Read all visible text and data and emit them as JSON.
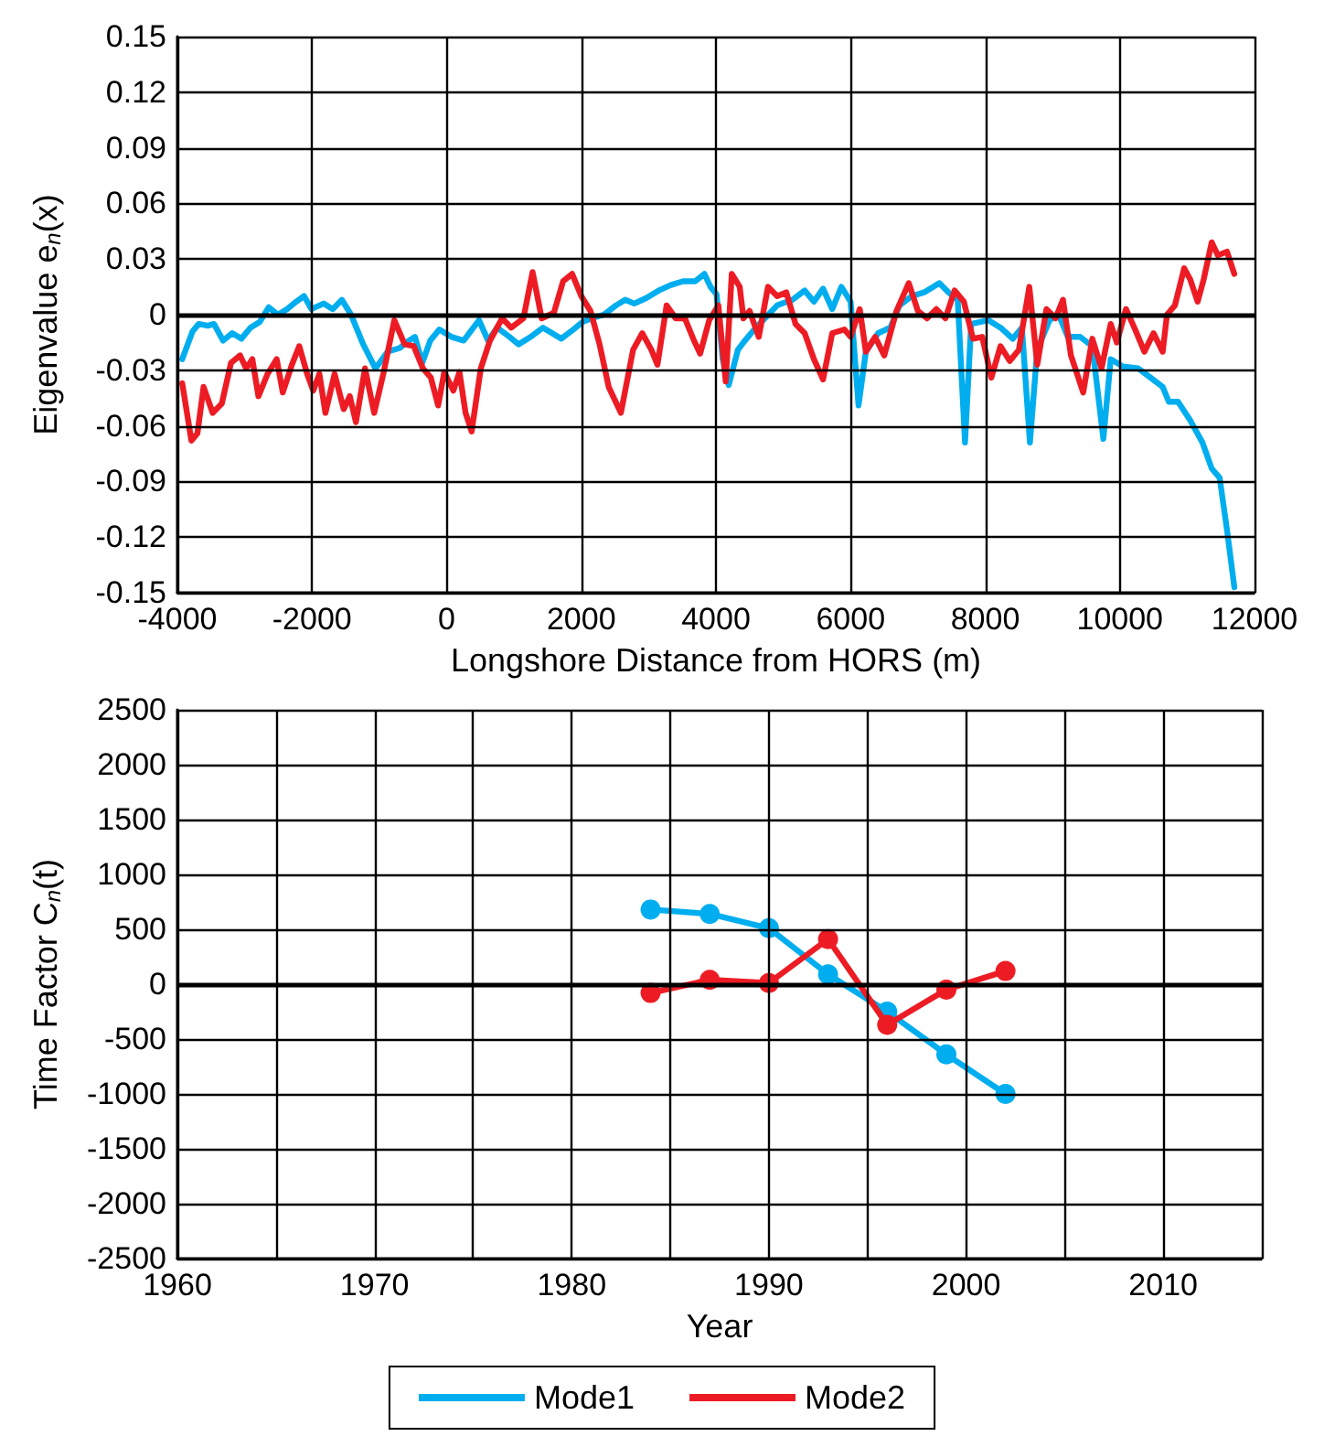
{
  "chart_data": [
    {
      "type": "line",
      "xlabel": "Longshore Distance from HORS (m)",
      "ylabel": "Eigenvalue e$_{n}$(x)",
      "xlim": [
        -4000,
        12000
      ],
      "ylim": [
        -0.15,
        0.15
      ],
      "xticks": [
        -4000,
        -2000,
        0,
        2000,
        4000,
        6000,
        8000,
        10000,
        12000
      ],
      "yticks": [
        -0.15,
        -0.12,
        -0.09,
        -0.06,
        -0.03,
        0,
        0.03,
        0.06,
        0.09,
        0.12,
        0.15
      ],
      "grid": true,
      "legend": false,
      "marker": "none",
      "line_style": "solid",
      "ref_lines": [
        {
          "axis": "y",
          "value": 0,
          "color": "#000000"
        }
      ],
      "series": [
        {
          "color": "#00aeef",
          "x": [
            -3928,
            -3774,
            -3683,
            -3548,
            -3457,
            -3321,
            -3186,
            -3050,
            -2914,
            -2778,
            -2643,
            -2507,
            -2371,
            -2235,
            -2118,
            -2009,
            -1828,
            -1692,
            -1557,
            -1421,
            -1240,
            -1059,
            -878,
            -697,
            -561,
            -471,
            -362,
            -244,
            -109,
            72,
            253,
            480,
            615,
            751,
            932,
            1068,
            1249,
            1430,
            1701,
            1882,
            2018,
            2154,
            2335,
            2516,
            2652,
            2787,
            2968,
            3149,
            3330,
            3511,
            3692,
            3828,
            3919,
            4009,
            4100,
            4190,
            4326,
            4409,
            4591,
            4727,
            4909,
            5136,
            5318,
            5455,
            5591,
            5727,
            5864,
            6000,
            6118,
            6227,
            6409,
            6591,
            6727,
            6909,
            7091,
            7318,
            7455,
            7591,
            7700,
            7791,
            8045,
            8227,
            8409,
            8545,
            8664,
            8773,
            8955,
            9091,
            9227,
            9409,
            9591,
            9755,
            9864,
            10045,
            10273,
            10455,
            10636,
            10727,
            10864,
            11045,
            11227,
            11364,
            11482,
            11591,
            11700
          ],
          "values": [
            -0.024,
            -0.009,
            -0.005,
            -0.006,
            -0.005,
            -0.014,
            -0.01,
            -0.013,
            -0.007,
            -0.004,
            0.004,
            0,
            0.003,
            0.007,
            0.01,
            0.003,
            0.006,
            0.003,
            0.008,
            0,
            -0.016,
            -0.029,
            -0.02,
            -0.018,
            -0.014,
            -0.012,
            -0.026,
            -0.014,
            -0.008,
            -0.012,
            -0.014,
            -0.003,
            -0.014,
            -0.007,
            -0.012,
            -0.016,
            -0.012,
            -0.007,
            -0.013,
            -0.008,
            -0.004,
            -0.002,
            0,
            0.005,
            0.008,
            0.006,
            0.009,
            0.013,
            0.016,
            0.018,
            0.018,
            0.022,
            0.015,
            0.011,
            -0.024,
            -0.038,
            -0.019,
            -0.015,
            -0.007,
            -0.002,
            0.005,
            0.008,
            0.013,
            0.007,
            0.014,
            0.003,
            0.015,
            0.007,
            -0.049,
            -0.02,
            -0.01,
            -0.007,
            0.005,
            0.01,
            0.012,
            0.017,
            0.012,
            0.008,
            -0.069,
            -0.005,
            -0.003,
            -0.007,
            -0.013,
            -0.007,
            -0.069,
            -0.019,
            -0.003,
            0,
            -0.012,
            -0.012,
            -0.017,
            -0.067,
            -0.024,
            -0.028,
            -0.029,
            -0.034,
            -0.039,
            -0.047,
            -0.047,
            -0.057,
            -0.069,
            -0.083,
            -0.088,
            -0.116,
            -0.147
          ]
        },
        {
          "color": "#ed1c24",
          "x": [
            -3928,
            -3792,
            -3702,
            -3611,
            -3476,
            -3340,
            -3204,
            -3069,
            -2978,
            -2887,
            -2796,
            -2661,
            -2525,
            -2434,
            -2299,
            -2190,
            -2072,
            -1982,
            -1891,
            -1801,
            -1665,
            -1529,
            -1439,
            -1348,
            -1213,
            -1077,
            -941,
            -778,
            -624,
            -489,
            -353,
            -235,
            -127,
            -36,
            100,
            190,
            281,
            371,
            507,
            643,
            824,
            959,
            1140,
            1276,
            1412,
            1593,
            1729,
            1864,
            2000,
            2136,
            2271,
            2407,
            2588,
            2769,
            2905,
            3041,
            3131,
            3267,
            3403,
            3538,
            3674,
            3765,
            3900,
            4036,
            4145,
            4235,
            4353,
            4409,
            4500,
            4636,
            4773,
            4909,
            5045,
            5182,
            5318,
            5455,
            5591,
            5727,
            5909,
            6000,
            6136,
            6227,
            6364,
            6500,
            6682,
            6864,
            7000,
            7136,
            7273,
            7409,
            7545,
            7682,
            7818,
            7955,
            8091,
            8227,
            8364,
            8500,
            8655,
            8773,
            8909,
            9045,
            9155,
            9273,
            9455,
            9591,
            9727,
            9864,
            9955,
            10091,
            10227,
            10364,
            10500,
            10636,
            10700,
            10818,
            10955,
            11045,
            11155,
            11245,
            11364,
            11455,
            11591,
            11700
          ],
          "values": [
            -0.037,
            -0.068,
            -0.064,
            -0.039,
            -0.053,
            -0.048,
            -0.026,
            -0.022,
            -0.029,
            -0.024,
            -0.044,
            -0.032,
            -0.024,
            -0.042,
            -0.027,
            -0.017,
            -0.032,
            -0.041,
            -0.032,
            -0.053,
            -0.032,
            -0.051,
            -0.044,
            -0.058,
            -0.029,
            -0.053,
            -0.032,
            -0.003,
            -0.016,
            -0.017,
            -0.029,
            -0.034,
            -0.049,
            -0.031,
            -0.041,
            -0.031,
            -0.053,
            -0.063,
            -0.029,
            -0.014,
            -0.002,
            -0.007,
            -0.002,
            0.023,
            -0.002,
            0.001,
            0.018,
            0.022,
            0.01,
            0.002,
            -0.016,
            -0.039,
            -0.053,
            -0.019,
            -0.01,
            -0.019,
            -0.027,
            0.005,
            -0.002,
            -0.002,
            -0.014,
            -0.021,
            -0.003,
            0.005,
            -0.036,
            0.022,
            0.015,
            -0.002,
            0.002,
            -0.012,
            0.015,
            0.01,
            0.012,
            -0.005,
            -0.01,
            -0.024,
            -0.035,
            -0.01,
            -0.008,
            -0.012,
            0.003,
            -0.02,
            -0.012,
            -0.022,
            0.002,
            0.017,
            0.002,
            -0.002,
            0.003,
            -0.002,
            0.013,
            0.007,
            -0.013,
            -0.012,
            -0.034,
            -0.017,
            -0.025,
            -0.019,
            0.015,
            -0.027,
            0.003,
            -0.002,
            0.008,
            -0.022,
            -0.042,
            -0.013,
            -0.029,
            -0.005,
            -0.015,
            0.003,
            -0.008,
            -0.02,
            -0.01,
            -0.02,
            0,
            0.005,
            0.025,
            0.019,
            0.007,
            0.019,
            0.039,
            0.032,
            0.034,
            0.022
          ]
        }
      ]
    },
    {
      "type": "line",
      "xlabel": "Year",
      "ylabel": "Time Factor C$_{n}$(t)",
      "xlim": [
        1960,
        2015
      ],
      "ylim": [
        -2500,
        2500
      ],
      "xticks": [
        1960,
        {
          "value": 1965,
          "label": null
        },
        1970,
        {
          "value": 1975,
          "label": null
        },
        1980,
        {
          "value": 1985,
          "label": null
        },
        1990,
        {
          "value": 1995,
          "label": null
        },
        2000,
        {
          "value": 2005,
          "label": null
        },
        2010,
        {
          "value": 2015,
          "label": null
        }
      ],
      "yticks": [
        -2500,
        -2000,
        -1500,
        -1000,
        -500,
        0,
        500,
        1000,
        1500,
        2000,
        2500
      ],
      "grid": true,
      "legend": "bottom",
      "marker": "circle",
      "line_style": "solid",
      "ref_lines": [
        {
          "axis": "y",
          "value": 0,
          "color": "#000000"
        }
      ],
      "x": [
        1984,
        1987,
        1990,
        1993,
        1996,
        1999,
        2002
      ],
      "series": [
        {
          "name": "Mode1",
          "color": "#00aeef",
          "values": [
            680,
            640,
            510,
            90,
            -250,
            -640,
            -1000
          ]
        },
        {
          "name": "Mode2",
          "color": "#ed1c24",
          "values": [
            -80,
            40,
            10,
            410,
            -370,
            -50,
            120
          ]
        }
      ]
    }
  ]
}
